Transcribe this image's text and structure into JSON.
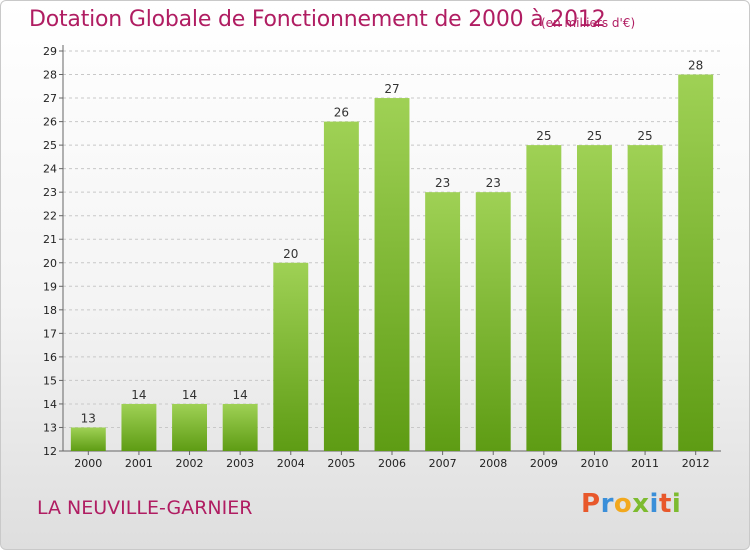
{
  "header": {
    "title": "Dotation Globale de Fonctionnement de 2000 à 2012",
    "subtitle": "(en milliers d'€)"
  },
  "footer": {
    "commune": "LA NEUVILLE-GARNIER",
    "logo_text": "Proxiti",
    "logo_colors": [
      "#e8582b",
      "#3a8fd9",
      "#f2a81d",
      "#7dbb2f",
      "#3a8fd9",
      "#e8582b",
      "#7dbb2f"
    ]
  },
  "colors": {
    "bar_top": "#9fd155",
    "bar_bottom": "#5e9c14",
    "grid": "#c8c8c8",
    "title": "#b01d62"
  },
  "chart_data": {
    "type": "bar",
    "title": "Dotation Globale de Fonctionnement de 2000 à 2012",
    "subtitle": "(en milliers d'€)",
    "xlabel": "",
    "ylabel": "",
    "categories": [
      "2000",
      "2001",
      "2002",
      "2003",
      "2004",
      "2005",
      "2006",
      "2007",
      "2008",
      "2009",
      "2010",
      "2011",
      "2012"
    ],
    "values": [
      13,
      14,
      14,
      14,
      20,
      26,
      27,
      23,
      23,
      25,
      25,
      25,
      28
    ],
    "ylim": [
      12,
      29
    ],
    "yticks": [
      12,
      13,
      14,
      15,
      16,
      17,
      18,
      19,
      20,
      21,
      22,
      23,
      24,
      25,
      26,
      27,
      28,
      29
    ],
    "grid": true,
    "data_labels": true
  }
}
